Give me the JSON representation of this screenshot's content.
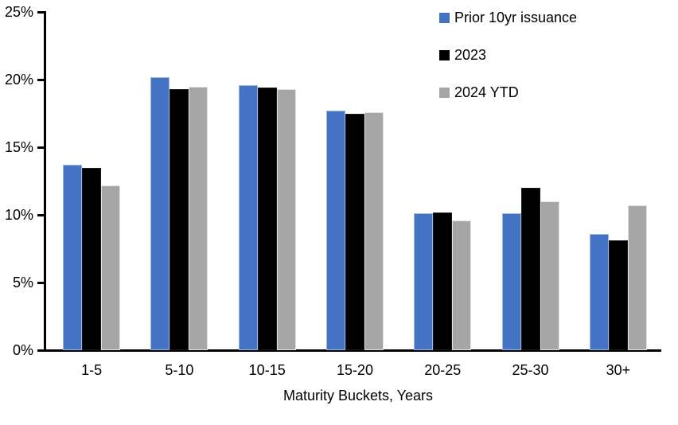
{
  "chart_data": {
    "type": "bar",
    "categories": [
      "1-5",
      "5-10",
      "10-15",
      "15-20",
      "20-25",
      "25-30",
      "30+"
    ],
    "series": [
      {
        "name": "Prior 10yr issuance",
        "color": "#4472C4",
        "border_color": "#9DB7E0",
        "values": [
          13.7,
          20.2,
          19.6,
          17.7,
          10.1,
          10.1,
          8.6
        ]
      },
      {
        "name": "2023",
        "color": "#000000",
        "border_color": "#1A1A1A",
        "values": [
          13.5,
          19.3,
          19.4,
          17.5,
          10.2,
          12.0,
          8.1
        ]
      },
      {
        "name": "2024 YTD",
        "color": "#A6A6A6",
        "border_color": "#E2E2E2",
        "values": [
          12.2,
          19.5,
          19.3,
          17.6,
          9.6,
          11.0,
          10.7
        ]
      }
    ],
    "xlabel": "Maturity Buckets, Years",
    "ylabel": "",
    "ylim": [
      0,
      25
    ],
    "yticks": [
      {
        "value": 0,
        "label": "0%"
      },
      {
        "value": 5,
        "label": "5%"
      },
      {
        "value": 10,
        "label": "10%"
      },
      {
        "value": 15,
        "label": "15%"
      },
      {
        "value": 20,
        "label": "20%"
      },
      {
        "value": 25,
        "label": "25%"
      }
    ],
    "grid": false,
    "legend_position": "top-right"
  }
}
